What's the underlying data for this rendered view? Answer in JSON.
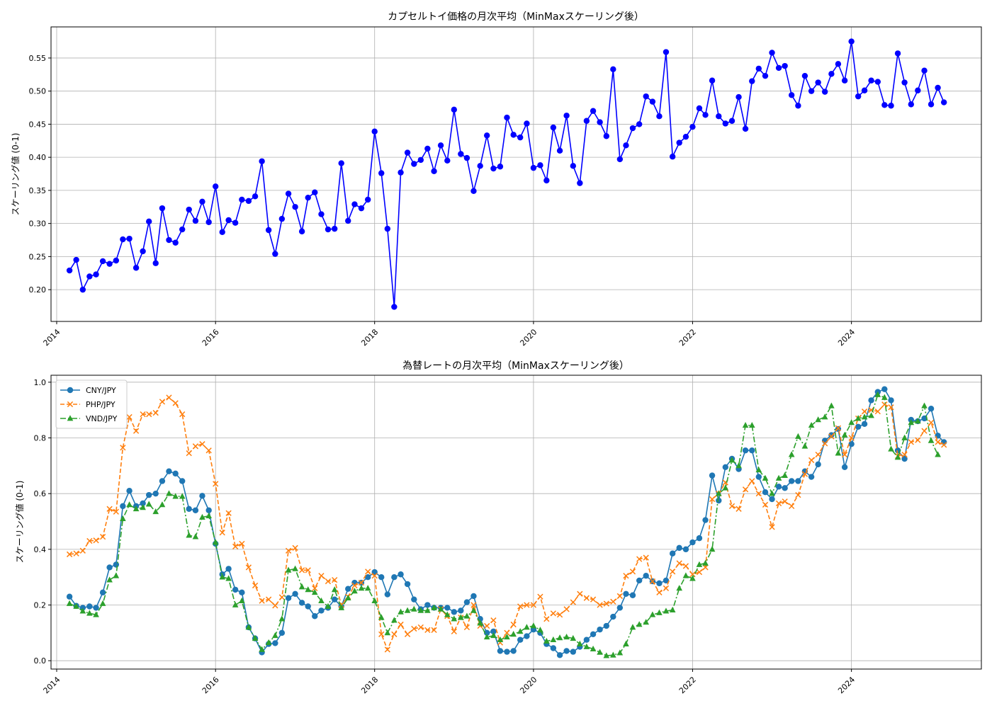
{
  "chart_data": [
    {
      "type": "line",
      "title": "カプセルトイ価格の月次平均（MinMaxスケーリング後）",
      "xlabel": "",
      "ylabel": "スケーリング値 (0-1)",
      "xlim": [
        "2013-12-06",
        "2025-08-20"
      ],
      "ylim": [
        0.152,
        0.597
      ],
      "x_ticks": [
        "2014",
        "2016",
        "2018",
        "2020",
        "2022",
        "2024"
      ],
      "y_ticks": [
        "0.20",
        "0.25",
        "0.30",
        "0.35",
        "0.40",
        "0.45",
        "0.50",
        "0.55"
      ],
      "grid": true,
      "start": "2014-03",
      "series": [
        {
          "color": "#0000ff",
          "marker": "circle",
          "line": "solid",
          "values": [
            0.229,
            0.245,
            0.2,
            0.22,
            0.223,
            0.243,
            0.239,
            0.244,
            0.276,
            0.277,
            0.233,
            0.258,
            0.303,
            0.24,
            0.323,
            0.275,
            0.271,
            0.291,
            0.321,
            0.304,
            0.333,
            0.302,
            0.356,
            0.287,
            0.305,
            0.301,
            0.336,
            0.334,
            0.341,
            0.394,
            0.29,
            0.254,
            0.307,
            0.345,
            0.325,
            0.288,
            0.339,
            0.347,
            0.314,
            0.291,
            0.292,
            0.391,
            0.304,
            0.329,
            0.323,
            0.336,
            0.439,
            0.376,
            0.292,
            0.174,
            0.377,
            0.407,
            0.39,
            0.396,
            0.413,
            0.379,
            0.418,
            0.395,
            0.472,
            0.405,
            0.399,
            0.349,
            0.387,
            0.433,
            0.383,
            0.386,
            0.46,
            0.434,
            0.43,
            0.451,
            0.384,
            0.388,
            0.365,
            0.445,
            0.41,
            0.463,
            0.387,
            0.361,
            0.455,
            0.47,
            0.453,
            0.432,
            0.533,
            0.397,
            0.418,
            0.444,
            0.45,
            0.492,
            0.484,
            0.462,
            0.559,
            0.401,
            0.422,
            0.431,
            0.446,
            0.474,
            0.464,
            0.516,
            0.462,
            0.451,
            0.455,
            0.491,
            0.443,
            0.515,
            0.534,
            0.523,
            0.558,
            0.535,
            0.538,
            0.494,
            0.478,
            0.523,
            0.5,
            0.513,
            0.499,
            0.526,
            0.541,
            0.516,
            0.575,
            0.492,
            0.501,
            0.516,
            0.514,
            0.479,
            0.478,
            0.557,
            0.513,
            0.48,
            0.501,
            0.531,
            0.48,
            0.505,
            0.483
          ]
        }
      ]
    },
    {
      "type": "line",
      "title": "為替レートの月次平均（MinMaxスケーリング後）",
      "xlabel": "",
      "ylabel": "スケーリング値 (0-1)",
      "xlim": [
        "2013-12-06",
        "2025-08-20"
      ],
      "ylim": [
        -0.03,
        1.025
      ],
      "x_ticks": [
        "2014",
        "2016",
        "2018",
        "2020",
        "2022",
        "2024"
      ],
      "y_ticks": [
        "0.0",
        "0.2",
        "0.4",
        "0.6",
        "0.8",
        "1.0"
      ],
      "grid": true,
      "legend": "top-left",
      "start": "2014-03",
      "series": [
        {
          "name": "CNY/JPY",
          "color": "#1f77b4",
          "marker": "circle",
          "line": "solid",
          "values": [
            0.23,
            0.197,
            0.19,
            0.195,
            0.19,
            0.245,
            0.335,
            0.345,
            0.555,
            0.61,
            0.555,
            0.565,
            0.595,
            0.6,
            0.645,
            0.68,
            0.672,
            0.645,
            0.545,
            0.54,
            0.592,
            0.54,
            0.42,
            0.31,
            0.33,
            0.255,
            0.245,
            0.12,
            0.08,
            0.03,
            0.06,
            0.063,
            0.1,
            0.225,
            0.24,
            0.208,
            0.195,
            0.16,
            0.18,
            0.19,
            0.22,
            0.195,
            0.258,
            0.28,
            0.28,
            0.3,
            0.318,
            0.3,
            0.238,
            0.3,
            0.31,
            0.275,
            0.22,
            0.185,
            0.2,
            0.19,
            0.19,
            0.19,
            0.175,
            0.18,
            0.21,
            0.232,
            0.15,
            0.1,
            0.105,
            0.035,
            0.032,
            0.035,
            0.075,
            0.088,
            0.112,
            0.1,
            0.06,
            0.045,
            0.02,
            0.035,
            0.032,
            0.05,
            0.075,
            0.095,
            0.112,
            0.125,
            0.158,
            0.19,
            0.24,
            0.235,
            0.288,
            0.305,
            0.285,
            0.278,
            0.288,
            0.385,
            0.405,
            0.4,
            0.425,
            0.44,
            0.505,
            0.665,
            0.575,
            0.695,
            0.725,
            0.688,
            0.755,
            0.755,
            0.66,
            0.605,
            0.58,
            0.625,
            0.62,
            0.645,
            0.645,
            0.68,
            0.66,
            0.705,
            0.79,
            0.81,
            0.832,
            0.695,
            0.778,
            0.84,
            0.85,
            0.935,
            0.965,
            0.975,
            0.935,
            0.755,
            0.725,
            0.865,
            0.86,
            0.87,
            0.905,
            0.808,
            0.785
          ]
        },
        {
          "name": "PHP/JPY",
          "color": "#ff7f0e",
          "marker": "x",
          "line": "dashed",
          "values": [
            0.382,
            0.385,
            0.395,
            0.43,
            0.432,
            0.445,
            0.545,
            0.535,
            0.765,
            0.875,
            0.825,
            0.885,
            0.885,
            0.89,
            0.93,
            0.945,
            0.925,
            0.885,
            0.745,
            0.77,
            0.778,
            0.755,
            0.635,
            0.46,
            0.53,
            0.41,
            0.42,
            0.335,
            0.27,
            0.215,
            0.22,
            0.198,
            0.228,
            0.395,
            0.405,
            0.325,
            0.325,
            0.26,
            0.305,
            0.285,
            0.29,
            0.2,
            0.23,
            0.27,
            0.28,
            0.32,
            0.305,
            0.095,
            0.04,
            0.095,
            0.13,
            0.095,
            0.115,
            0.12,
            0.11,
            0.11,
            0.185,
            0.16,
            0.105,
            0.155,
            0.12,
            0.2,
            0.125,
            0.125,
            0.145,
            0.065,
            0.1,
            0.13,
            0.195,
            0.2,
            0.2,
            0.23,
            0.15,
            0.17,
            0.165,
            0.185,
            0.21,
            0.24,
            0.225,
            0.22,
            0.2,
            0.205,
            0.212,
            0.232,
            0.305,
            0.32,
            0.365,
            0.37,
            0.285,
            0.245,
            0.26,
            0.32,
            0.35,
            0.34,
            0.31,
            0.318,
            0.335,
            0.58,
            0.6,
            0.64,
            0.555,
            0.545,
            0.615,
            0.645,
            0.6,
            0.56,
            0.48,
            0.565,
            0.572,
            0.555,
            0.595,
            0.67,
            0.72,
            0.74,
            0.78,
            0.805,
            0.835,
            0.74,
            0.8,
            0.87,
            0.895,
            0.9,
            0.895,
            0.92,
            0.91,
            0.735,
            0.74,
            0.785,
            0.792,
            0.825,
            0.855,
            0.785,
            0.775
          ]
        },
        {
          "name": "VND/JPY",
          "color": "#2ca02c",
          "marker": "triangle",
          "line": "dashdot",
          "values": [
            0.205,
            0.195,
            0.178,
            0.17,
            0.165,
            0.205,
            0.29,
            0.305,
            0.51,
            0.56,
            0.545,
            0.55,
            0.562,
            0.535,
            0.56,
            0.6,
            0.59,
            0.59,
            0.45,
            0.445,
            0.515,
            0.52,
            0.425,
            0.3,
            0.295,
            0.2,
            0.215,
            0.12,
            0.08,
            0.04,
            0.065,
            0.09,
            0.15,
            0.325,
            0.33,
            0.265,
            0.255,
            0.245,
            0.215,
            0.195,
            0.255,
            0.19,
            0.225,
            0.25,
            0.26,
            0.26,
            0.215,
            0.155,
            0.1,
            0.145,
            0.175,
            0.18,
            0.185,
            0.18,
            0.18,
            0.19,
            0.185,
            0.165,
            0.15,
            0.155,
            0.16,
            0.18,
            0.135,
            0.085,
            0.09,
            0.075,
            0.085,
            0.095,
            0.105,
            0.12,
            0.125,
            0.11,
            0.07,
            0.075,
            0.082,
            0.085,
            0.08,
            0.06,
            0.05,
            0.042,
            0.03,
            0.018,
            0.02,
            0.028,
            0.06,
            0.12,
            0.13,
            0.138,
            0.165,
            0.172,
            0.178,
            0.182,
            0.26,
            0.305,
            0.295,
            0.345,
            0.35,
            0.4,
            0.6,
            0.62,
            0.72,
            0.7,
            0.845,
            0.845,
            0.685,
            0.655,
            0.6,
            0.655,
            0.665,
            0.74,
            0.805,
            0.77,
            0.845,
            0.865,
            0.875,
            0.915,
            0.745,
            0.81,
            0.855,
            0.87,
            0.875,
            0.88,
            0.955,
            0.945,
            0.76,
            0.73,
            0.8,
            0.855,
            0.86,
            0.915,
            0.79,
            0.74
          ]
        }
      ]
    }
  ]
}
